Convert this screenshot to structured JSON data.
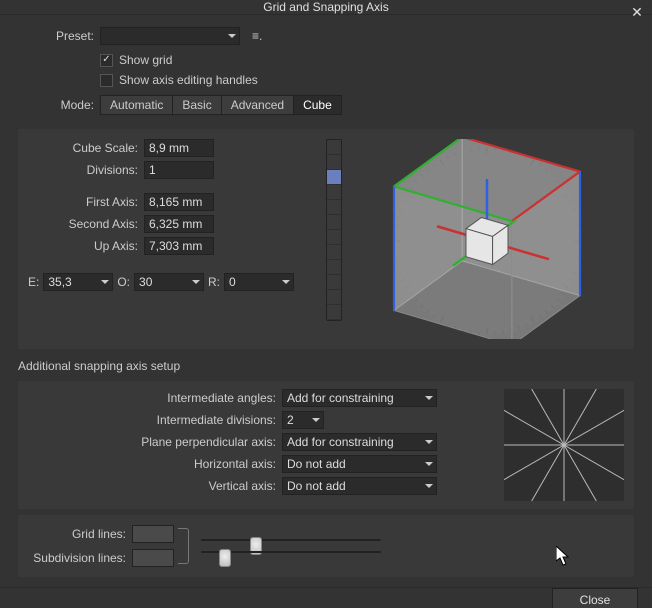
{
  "colors": {
    "window_bg": "#333333",
    "panel_bg": "#393939",
    "input_bg": "#2b2b2b",
    "text": "#cccccc",
    "axis_x": "#cc3030",
    "axis_y": "#30b030",
    "axis_z": "#3060e0",
    "cube_face": "#cfcfcf80",
    "cube_edge": "#7a7a7a"
  },
  "title": "Grid and Snapping Axis",
  "preset": {
    "label": "Preset:",
    "value": ""
  },
  "options_icon": "≡.",
  "show_grid": {
    "label": "Show grid",
    "checked": true
  },
  "show_axis_handles": {
    "label": "Show axis editing handles",
    "checked": false
  },
  "mode": {
    "label": "Mode:",
    "tabs": [
      "Automatic",
      "Basic",
      "Advanced",
      "Cube"
    ],
    "active_index": 3
  },
  "cube_scale": {
    "label": "Cube Scale:",
    "value": "8,9 mm"
  },
  "divisions": {
    "label": "Divisions:",
    "value": "1"
  },
  "first_axis": {
    "label": "First Axis:",
    "value": "8,165 mm"
  },
  "second_axis": {
    "label": "Second Axis:",
    "value": "6,325 mm"
  },
  "up_axis": {
    "label": "Up Axis:",
    "value": "7,303 mm"
  },
  "eor": {
    "e_label": "E:",
    "e_value": "35,3",
    "o_label": "O:",
    "o_value": "30",
    "r_label": "R:",
    "r_value": "0"
  },
  "additional_title": "Additional snapping axis setup",
  "intermediate_angles": {
    "label": "Intermediate angles:",
    "value": "Add for constraining"
  },
  "intermediate_divisions": {
    "label": "Intermediate divisions:",
    "value": "2"
  },
  "plane_perp": {
    "label": "Plane perpendicular axis:",
    "value": "Add for constraining"
  },
  "horizontal_axis": {
    "label": "Horizontal axis:",
    "value": "Do not add"
  },
  "vertical_axis": {
    "label": "Vertical axis:",
    "value": "Do not add"
  },
  "grid_lines": {
    "label": "Grid lines:",
    "slider_pos": 0.31
  },
  "subdivision_lines": {
    "label": "Subdivision lines:",
    "slider_pos": 0.13
  },
  "close_button": "Close",
  "cube_preview": {
    "type": "3d-orientation-cube",
    "dial_radius": 95,
    "tick_count": 72,
    "cube_half": 62,
    "inner_cube_half": 14,
    "colors": {
      "dial_bg": "#3c3c3c",
      "tick": "#2b2b2b",
      "face_front": "rgba(200,200,200,0.45)",
      "face_side": "rgba(170,170,170,0.35)",
      "face_top": "rgba(220,220,220,0.30)",
      "edge": "#8a8a8a",
      "axis_x": "#cc3030",
      "axis_y": "#30b030",
      "axis_z": "#3060e0",
      "inner_fill": "#e6e6e6",
      "inner_edge": "#555"
    }
  },
  "angles_preview": {
    "type": "radial-lines",
    "angles_deg": [
      0,
      30,
      60,
      90,
      120,
      150
    ],
    "highlight_index": 4,
    "stroke": "#b9b9b9",
    "highlight_stroke": "#f2f2f2",
    "bg": "#2e2e2e"
  }
}
